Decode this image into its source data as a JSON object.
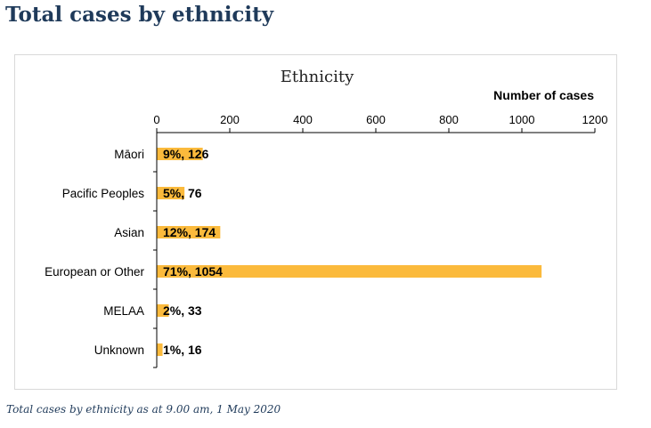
{
  "page": {
    "title": "Total cases by ethnicity",
    "caption": "Total cases by ethnicity as at 9.00 am, 1 May 2020"
  },
  "colors": {
    "bar": "#FBBA3C",
    "title": "#1f3a5a",
    "axis": "#000000",
    "frame": "#d9d9d9"
  },
  "chart_data": {
    "type": "bar",
    "orientation": "horizontal",
    "title": "Ethnicity",
    "xlabel": "Number of cases",
    "ylabel": "",
    "xlim": [
      0,
      1200
    ],
    "xticks": [
      0,
      200,
      400,
      600,
      800,
      1000,
      1200
    ],
    "x_axis_position": "top",
    "grid": false,
    "legend": "none",
    "categories": [
      "Māori",
      "Pacific Peoples",
      "Asian",
      "European or Other",
      "MELAA",
      "Unknown"
    ],
    "values": [
      126,
      76,
      174,
      1054,
      33,
      16
    ],
    "percentages": [
      "9%",
      "5%",
      "12%",
      "71%",
      "2%",
      "1%"
    ],
    "data_labels": [
      "9%, 126",
      "5%, 76",
      "12%, 174",
      "71%, 1054",
      "2%, 33",
      "1%, 16"
    ]
  }
}
